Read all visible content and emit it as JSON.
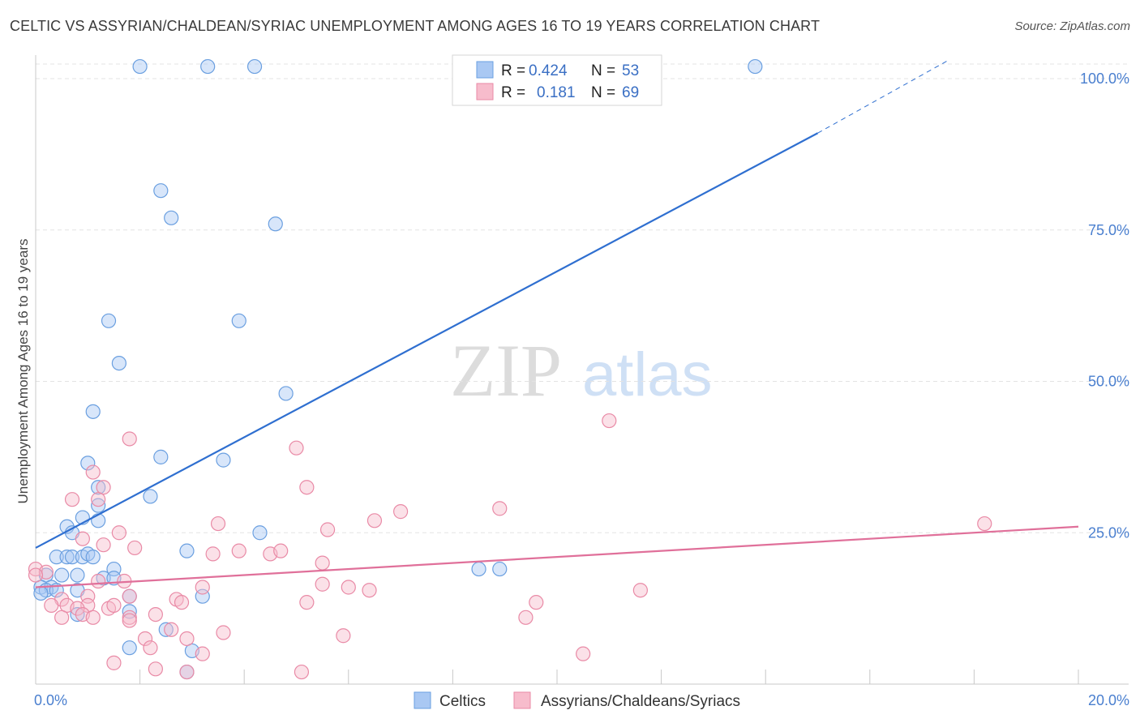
{
  "title": "CELTIC VS ASSYRIAN/CHALDEAN/SYRIAC UNEMPLOYMENT AMONG AGES 16 TO 19 YEARS CORRELATION CHART",
  "source": "Source: ZipAtlas.com",
  "watermark": {
    "zip": "ZIP",
    "atlas": "atlas"
  },
  "colors": {
    "blue_fill": "#a9c8f3",
    "blue_stroke": "#6a9fe0",
    "blue_line": "#2f6fd0",
    "pink_fill": "#f7bccc",
    "pink_stroke": "#e98aa6",
    "pink_line": "#e0709a",
    "tick_color": "#4a7fcf"
  },
  "chart_data": {
    "type": "scatter",
    "xlabel": "",
    "ylabel": "Unemployment Among Ages 16 to 19 years",
    "xlim": [
      0,
      20
    ],
    "ylim": [
      0,
      100
    ],
    "x_tick_labels": [
      {
        "value": 0,
        "label": "0.0%"
      },
      {
        "value": 20,
        "label": "20.0%"
      }
    ],
    "y_tick_labels": [
      {
        "value": 25,
        "label": "25.0%"
      },
      {
        "value": 50,
        "label": "50.0%"
      },
      {
        "value": 75,
        "label": "75.0%"
      },
      {
        "value": 100,
        "label": "100.0%"
      }
    ],
    "legend": {
      "position": "top-center",
      "rows": [
        {
          "series": "Celtics",
          "r_label": "R =",
          "r_value": "0.424",
          "n_label": "N =",
          "n_value": "53"
        },
        {
          "series": "Assyrians/Chaldeans/Syriacs",
          "r_label": "R =",
          "r_value": "0.181",
          "n_label": "N =",
          "n_value": "69"
        }
      ]
    },
    "series": [
      {
        "name": "Celtics",
        "color": "blue",
        "trend": {
          "x0": 0,
          "y0": 22.5,
          "x1": 15,
          "y1": 91,
          "dash_to_x": 17.5,
          "dash_to_y": 103
        },
        "points": [
          [
            2.0,
            102
          ],
          [
            3.3,
            102
          ],
          [
            4.2,
            102
          ],
          [
            13.8,
            102
          ],
          [
            2.4,
            81.5
          ],
          [
            2.6,
            77
          ],
          [
            4.6,
            76
          ],
          [
            1.4,
            60
          ],
          [
            3.9,
            60
          ],
          [
            1.6,
            53
          ],
          [
            4.8,
            48
          ],
          [
            1.1,
            45
          ],
          [
            1.0,
            36.5
          ],
          [
            2.4,
            37.5
          ],
          [
            3.6,
            37
          ],
          [
            1.2,
            32.5
          ],
          [
            1.2,
            29.5
          ],
          [
            2.2,
            31
          ],
          [
            0.9,
            27.5
          ],
          [
            1.2,
            27
          ],
          [
            0.6,
            26
          ],
          [
            0.7,
            25
          ],
          [
            4.3,
            25
          ],
          [
            0.4,
            21
          ],
          [
            0.6,
            21
          ],
          [
            0.7,
            21
          ],
          [
            0.9,
            21
          ],
          [
            1.0,
            21.5
          ],
          [
            1.1,
            21
          ],
          [
            2.9,
            22
          ],
          [
            1.5,
            19
          ],
          [
            8.5,
            19
          ],
          [
            8.9,
            19
          ],
          [
            0.2,
            18
          ],
          [
            0.5,
            18
          ],
          [
            0.8,
            18
          ],
          [
            1.3,
            17.5
          ],
          [
            1.5,
            17.5
          ],
          [
            0.1,
            16
          ],
          [
            0.3,
            16
          ],
          [
            0.2,
            15.5
          ],
          [
            0.1,
            15
          ],
          [
            0.4,
            15.5
          ],
          [
            0.8,
            15.5
          ],
          [
            1.8,
            14.5
          ],
          [
            3.2,
            14.5
          ],
          [
            1.8,
            12
          ],
          [
            0.8,
            11.5
          ],
          [
            2.5,
            9
          ],
          [
            1.8,
            6
          ],
          [
            3.0,
            5.5
          ],
          [
            2.9,
            2
          ]
        ]
      },
      {
        "name": "Assyrians/Chaldeans/Syriacs",
        "color": "pink",
        "trend": {
          "x0": 0,
          "y0": 16,
          "x1": 20,
          "y1": 26
        },
        "points": [
          [
            11.0,
            43.5
          ],
          [
            1.8,
            40.5
          ],
          [
            5.0,
            39
          ],
          [
            1.1,
            35
          ],
          [
            1.3,
            32.5
          ],
          [
            5.2,
            32.5
          ],
          [
            1.2,
            30.5
          ],
          [
            0.7,
            30.5
          ],
          [
            8.9,
            29
          ],
          [
            7.0,
            28.5
          ],
          [
            6.5,
            27
          ],
          [
            3.5,
            26.5
          ],
          [
            5.6,
            25.5
          ],
          [
            1.6,
            25
          ],
          [
            0.9,
            24
          ],
          [
            1.3,
            23
          ],
          [
            1.9,
            22.5
          ],
          [
            3.9,
            22
          ],
          [
            4.5,
            21.5
          ],
          [
            4.7,
            22
          ],
          [
            3.4,
            21.5
          ],
          [
            18.2,
            26.5
          ],
          [
            5.5,
            20
          ],
          [
            0,
            19
          ],
          [
            0.2,
            18.5
          ],
          [
            0,
            18
          ],
          [
            1.2,
            17
          ],
          [
            1.7,
            17
          ],
          [
            5.5,
            16.5
          ],
          [
            6.0,
            16
          ],
          [
            6.4,
            15.5
          ],
          [
            3.2,
            16
          ],
          [
            11.6,
            15.5
          ],
          [
            1.8,
            14.5
          ],
          [
            1.0,
            14.5
          ],
          [
            0.5,
            14
          ],
          [
            2.7,
            14
          ],
          [
            2.8,
            13.5
          ],
          [
            5.2,
            13.5
          ],
          [
            9.6,
            13.5
          ],
          [
            0.3,
            13
          ],
          [
            0.6,
            13
          ],
          [
            1.0,
            13
          ],
          [
            1.4,
            12.5
          ],
          [
            1.5,
            13
          ],
          [
            0.8,
            12.5
          ],
          [
            0.9,
            11.5
          ],
          [
            1.1,
            11
          ],
          [
            0.5,
            11
          ],
          [
            1.8,
            11
          ],
          [
            2.3,
            11.5
          ],
          [
            9.4,
            11
          ],
          [
            1.8,
            10.5
          ],
          [
            2.6,
            9
          ],
          [
            3.6,
            8.5
          ],
          [
            2.1,
            7.5
          ],
          [
            2.9,
            7.5
          ],
          [
            5.9,
            8
          ],
          [
            2.2,
            6
          ],
          [
            3.2,
            5
          ],
          [
            10.5,
            5
          ],
          [
            1.5,
            3.5
          ],
          [
            2.3,
            2.5
          ],
          [
            2.9,
            2
          ],
          [
            5.1,
            2
          ]
        ]
      }
    ]
  },
  "bottom_legend": [
    {
      "label": "Celtics",
      "color": "blue"
    },
    {
      "label": "Assyrians/Chaldeans/Syriacs",
      "color": "pink"
    }
  ]
}
